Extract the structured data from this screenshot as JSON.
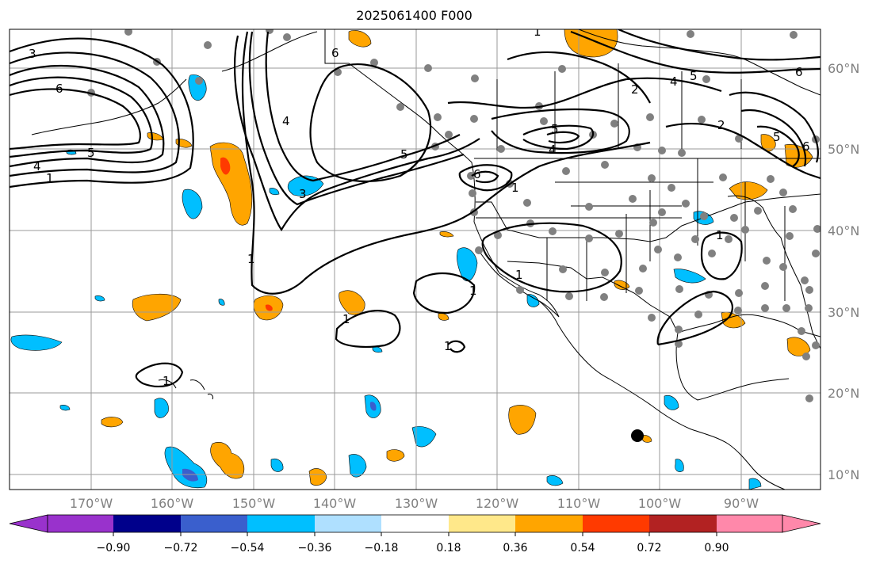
{
  "title": "2025061400 F000",
  "lon_labels": [
    "170°W",
    "160°W",
    "150°W",
    "140°W",
    "130°W",
    "120°W",
    "110°W",
    "100°W",
    "90°W"
  ],
  "lat_labels": [
    "60°N",
    "50°N",
    "40°N",
    "30°N",
    "20°N",
    "10°N"
  ],
  "colorbar": {
    "ticks": [
      "−0.90",
      "−0.72",
      "−0.54",
      "−0.36",
      "−0.18",
      "0.18",
      "0.36",
      "0.54",
      "0.72",
      "0.90"
    ],
    "colors": [
      "#9932cc",
      "#00008b",
      "#3a5fcd",
      "#00bfff",
      "#afe0ff",
      "#ffffff",
      "#ffe88a",
      "#ffa500",
      "#ff3a00",
      "#b22222",
      "#ff88aa"
    ]
  },
  "contour_labels": [
    "1",
    "2",
    "3",
    "4",
    "5",
    "6"
  ],
  "colors": {
    "contour": "#000000",
    "station": "#808080",
    "coast": "#000000",
    "grid": "#9a9a9a"
  }
}
